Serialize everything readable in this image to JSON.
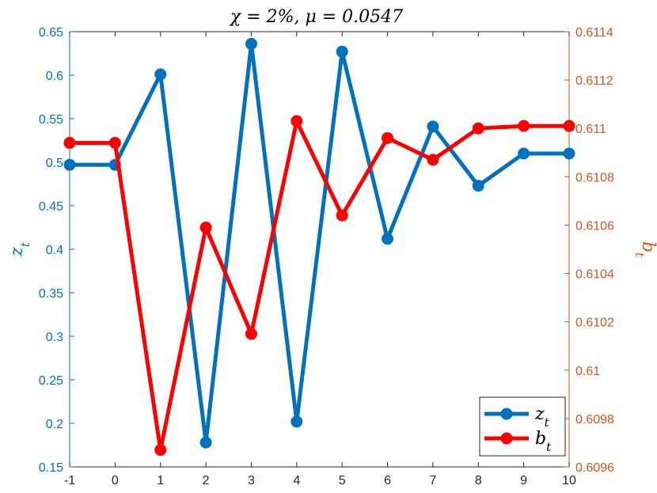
{
  "chart_data": {
    "type": "line",
    "title": "χ = 2%, μ = 0.0547",
    "x": [
      -1,
      0,
      1,
      2,
      3,
      4,
      5,
      6,
      7,
      8,
      9,
      10
    ],
    "xticks": [
      "-1",
      "0",
      "1",
      "2",
      "3",
      "4",
      "5",
      "6",
      "7",
      "8",
      "9",
      "10"
    ],
    "xlim": [
      -1,
      10
    ],
    "y_left": {
      "label": "z_t",
      "lim": [
        0.15,
        0.65
      ],
      "ticks": [
        "0.15",
        "0.2",
        "0.25",
        "0.3",
        "0.35",
        "0.4",
        "0.45",
        "0.5",
        "0.55",
        "0.6",
        "0.65"
      ],
      "color": "#0072BD"
    },
    "y_right": {
      "label": "b_t",
      "lim": [
        0.6096,
        0.6114
      ],
      "ticks": [
        "0.6096",
        "0.6098",
        "0.61",
        "0.6102",
        "0.6104",
        "0.6106",
        "0.6108",
        "0.611",
        "0.6112",
        "0.6114"
      ],
      "color": "#D95319"
    },
    "series": [
      {
        "name": "z_t",
        "axis": "left",
        "color": "#0072BD",
        "values": [
          0.497,
          0.497,
          0.601,
          0.178,
          0.636,
          0.202,
          0.627,
          0.412,
          0.541,
          0.473,
          0.51,
          0.51
        ]
      },
      {
        "name": "b_t",
        "axis": "right",
        "color": "#FF0000",
        "values": [
          0.61094,
          0.61094,
          0.60967,
          0.61059,
          0.61015,
          0.61103,
          0.61064,
          0.61096,
          0.61087,
          0.611,
          0.61101,
          0.61101
        ]
      }
    ],
    "legend": "bottom-right",
    "grid": false
  }
}
